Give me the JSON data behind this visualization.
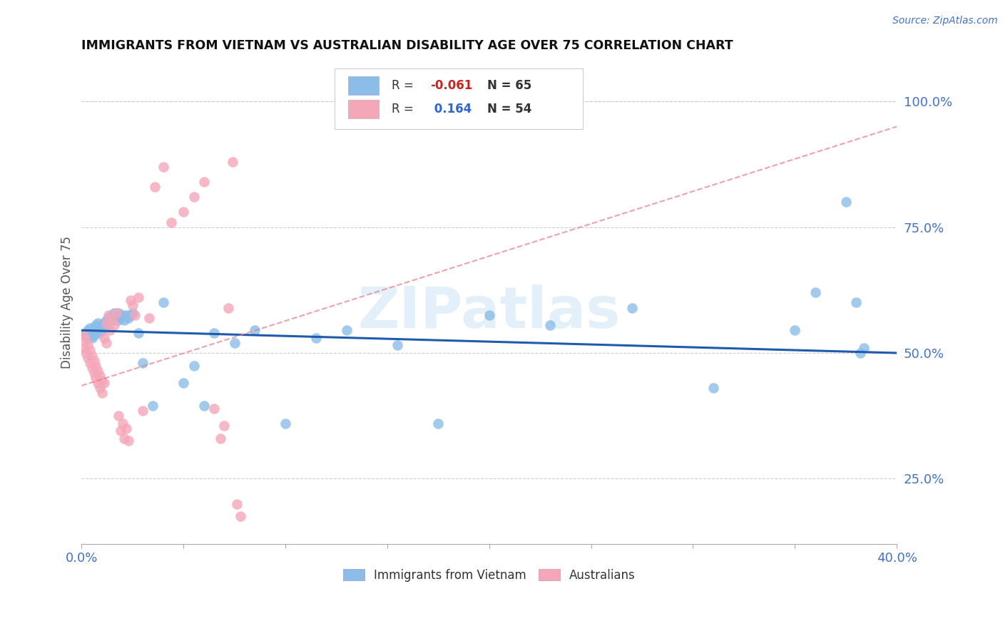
{
  "title": "IMMIGRANTS FROM VIETNAM VS AUSTRALIAN DISABILITY AGE OVER 75 CORRELATION CHART",
  "source": "Source: ZipAtlas.com",
  "ylabel": "Disability Age Over 75",
  "xlim": [
    0.0,
    0.4
  ],
  "ylim": [
    0.12,
    1.08
  ],
  "yticks_right": [
    0.25,
    0.5,
    0.75,
    1.0
  ],
  "ytick_labels_right": [
    "25.0%",
    "50.0%",
    "75.0%",
    "100.0%"
  ],
  "legend_r1": "R = -0.061",
  "legend_n1": "N = 65",
  "legend_r2": "R =  0.164",
  "legend_n2": "N = 54",
  "color_blue": "#8bbde8",
  "color_pink": "#f4a7b9",
  "color_blue_line": "#1f5aad",
  "color_pink_line": "#e87a8a",
  "color_axis_blue": "#4472c4",
  "watermark": "ZIPatlas",
  "blue_line_y0": 0.545,
  "blue_line_y1": 0.5,
  "pink_line_y0": 0.435,
  "pink_line_y1": 0.95,
  "blue_x": [
    0.001,
    0.002,
    0.003,
    0.003,
    0.004,
    0.004,
    0.005,
    0.005,
    0.006,
    0.006,
    0.007,
    0.007,
    0.008,
    0.008,
    0.009,
    0.009,
    0.01,
    0.01,
    0.011,
    0.011,
    0.012,
    0.012,
    0.013,
    0.013,
    0.014,
    0.015,
    0.015,
    0.016,
    0.016,
    0.017,
    0.017,
    0.018,
    0.018,
    0.019,
    0.02,
    0.021,
    0.022,
    0.023,
    0.024,
    0.025,
    0.028,
    0.03,
    0.035,
    0.04,
    0.05,
    0.055,
    0.06,
    0.065,
    0.075,
    0.085,
    0.1,
    0.115,
    0.13,
    0.155,
    0.175,
    0.2,
    0.23,
    0.27,
    0.31,
    0.35,
    0.36,
    0.375,
    0.38,
    0.382,
    0.384
  ],
  "blue_y": [
    0.535,
    0.54,
    0.53,
    0.545,
    0.535,
    0.55,
    0.54,
    0.53,
    0.55,
    0.535,
    0.555,
    0.54,
    0.545,
    0.56,
    0.55,
    0.54,
    0.555,
    0.545,
    0.56,
    0.55,
    0.565,
    0.555,
    0.56,
    0.57,
    0.565,
    0.575,
    0.565,
    0.57,
    0.58,
    0.57,
    0.575,
    0.565,
    0.58,
    0.57,
    0.575,
    0.565,
    0.575,
    0.57,
    0.575,
    0.58,
    0.54,
    0.48,
    0.395,
    0.6,
    0.44,
    0.475,
    0.395,
    0.54,
    0.52,
    0.545,
    0.36,
    0.53,
    0.545,
    0.515,
    0.36,
    0.575,
    0.555,
    0.59,
    0.43,
    0.545,
    0.62,
    0.8,
    0.6,
    0.5,
    0.51
  ],
  "pink_x": [
    0.001,
    0.001,
    0.002,
    0.002,
    0.003,
    0.003,
    0.004,
    0.004,
    0.005,
    0.005,
    0.006,
    0.006,
    0.007,
    0.007,
    0.008,
    0.008,
    0.009,
    0.009,
    0.01,
    0.01,
    0.011,
    0.011,
    0.012,
    0.012,
    0.013,
    0.014,
    0.015,
    0.016,
    0.017,
    0.018,
    0.019,
    0.02,
    0.021,
    0.022,
    0.023,
    0.024,
    0.025,
    0.026,
    0.028,
    0.03,
    0.033,
    0.036,
    0.04,
    0.044,
    0.05,
    0.055,
    0.06,
    0.065,
    0.068,
    0.07,
    0.072,
    0.074,
    0.076,
    0.078
  ],
  "pink_y": [
    0.535,
    0.51,
    0.525,
    0.5,
    0.515,
    0.49,
    0.505,
    0.48,
    0.495,
    0.47,
    0.485,
    0.46,
    0.475,
    0.45,
    0.465,
    0.44,
    0.455,
    0.43,
    0.445,
    0.42,
    0.44,
    0.53,
    0.56,
    0.52,
    0.575,
    0.545,
    0.565,
    0.555,
    0.58,
    0.375,
    0.345,
    0.36,
    0.33,
    0.35,
    0.325,
    0.605,
    0.595,
    0.575,
    0.61,
    0.385,
    0.57,
    0.83,
    0.87,
    0.76,
    0.78,
    0.81,
    0.84,
    0.39,
    0.33,
    0.355,
    0.59,
    0.88,
    0.2,
    0.175
  ]
}
